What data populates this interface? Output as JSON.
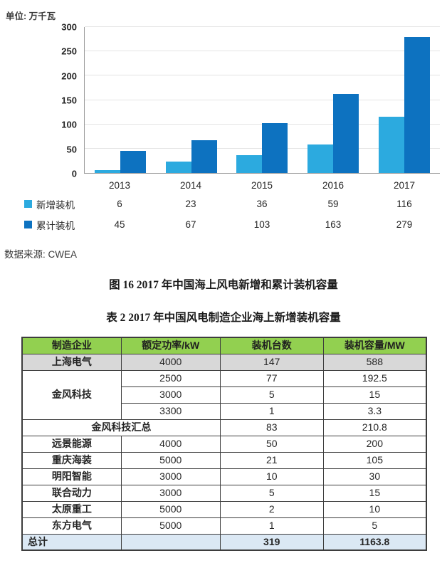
{
  "chart": {
    "unit_label": "单位: 万千瓦",
    "source_label": "数据来源: CWEA",
    "figure_caption": "图 16  2017 年中国海上风电新增和累计装机容量"
  },
  "chart_data": {
    "type": "bar",
    "title": "2017 年中国海上风电新增和累计装机容量",
    "categories": [
      "2013",
      "2014",
      "2015",
      "2016",
      "2017"
    ],
    "series": [
      {
        "name": "新增装机",
        "slug": "new-installed",
        "values": [
          6,
          23,
          36,
          59,
          116
        ],
        "color": "#2caadf"
      },
      {
        "name": "累计装机",
        "slug": "cumulative-installed",
        "values": [
          45,
          67,
          103,
          163,
          279
        ],
        "color": "#0d72c0"
      }
    ],
    "xlabel": "",
    "ylabel": "单位: 万千瓦",
    "ylim": [
      0,
      300
    ],
    "ytick_step": 50,
    "grid": true,
    "legend_position": "bottom-left-data-table"
  },
  "table2": {
    "caption": "表 2  2017 年中国风电制造企业海上新增装机容量",
    "header_bg": "#92d050",
    "total_row_bg": "#dbe8f4",
    "headers": [
      "制造企业",
      "额定功率/kW",
      "装机台数",
      "装机容量/MW"
    ],
    "rows": [
      [
        "上海电气",
        "4000",
        "147",
        "588"
      ],
      [
        "金风科技",
        "2500",
        "77",
        "192.5"
      ],
      [
        "3000",
        "5",
        "15"
      ],
      [
        "3300",
        "1",
        "3.3"
      ],
      [
        "金风科技汇总",
        "83",
        "210.8"
      ],
      [
        "远景能源",
        "4000",
        "50",
        "200"
      ],
      [
        "重庆海装",
        "5000",
        "21",
        "105"
      ],
      [
        "明阳智能",
        "3000",
        "10",
        "30"
      ],
      [
        "联合动力",
        "3000",
        "5",
        "15"
      ],
      [
        "太原重工",
        "5000",
        "2",
        "10"
      ],
      [
        "东方电气",
        "5000",
        "1",
        "5"
      ],
      [
        "总计",
        "",
        "319",
        "1163.8"
      ]
    ]
  }
}
